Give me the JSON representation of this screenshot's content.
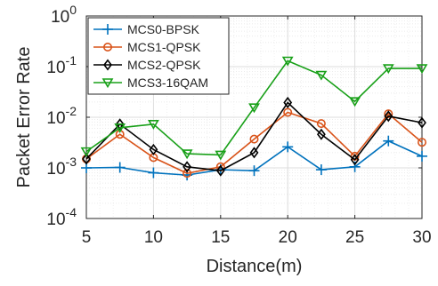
{
  "chart_data": {
    "type": "line",
    "title": "",
    "xlabel": "Distance(m)",
    "ylabel": "Packet Error Rate",
    "x": [
      5,
      7.5,
      10,
      12.5,
      15,
      17.5,
      20,
      22.5,
      25,
      27.5,
      30
    ],
    "xlim": [
      5,
      30
    ],
    "ylim": [
      0.0001,
      1
    ],
    "yscale": "log",
    "grid": true,
    "legend_position": "top-left",
    "xticks": [
      "5",
      "10",
      "15",
      "20",
      "25",
      "30"
    ],
    "yticks": [
      {
        "base": "10",
        "exp": "-4"
      },
      {
        "base": "10",
        "exp": "-3"
      },
      {
        "base": "10",
        "exp": "-2"
      },
      {
        "base": "10",
        "exp": "-1"
      },
      {
        "base": "10",
        "exp": "0"
      }
    ],
    "series": [
      {
        "name": "MCS0-BPSK",
        "color": "#0072BD",
        "marker": "plus",
        "values": [
          0.001,
          0.00102,
          0.0008,
          0.00072,
          0.00092,
          0.00088,
          0.0026,
          0.00092,
          0.00105,
          0.0034,
          0.0017
        ]
      },
      {
        "name": "MCS1-QPSK",
        "color": "#D95319",
        "marker": "circle",
        "values": [
          0.0015,
          0.0046,
          0.0016,
          0.00078,
          0.00105,
          0.0037,
          0.0125,
          0.0075,
          0.0017,
          0.0117,
          0.0032
        ]
      },
      {
        "name": "MCS2-QPSK",
        "color": "#000000",
        "marker": "diamond",
        "values": [
          0.0015,
          0.0073,
          0.0023,
          0.00105,
          0.00088,
          0.002,
          0.0195,
          0.0046,
          0.00145,
          0.0105,
          0.0078
        ]
      },
      {
        "name": "MCS3-16QAM",
        "color": "#18A018",
        "marker": "triangle-down",
        "values": [
          0.0021,
          0.0062,
          0.0073,
          0.0019,
          0.0018,
          0.0155,
          0.13,
          0.068,
          0.0205,
          0.092,
          0.092
        ]
      }
    ]
  }
}
